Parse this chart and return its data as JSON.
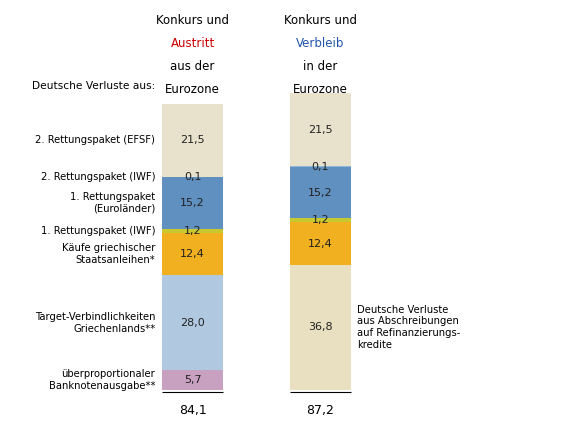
{
  "bar1_total": "84,1",
  "bar2_total": "87,2",
  "segments": [
    {
      "label": "2. Rettungspaket (EFSF)",
      "val1": 21.5,
      "val2": 21.5,
      "color1": "#e8e2cc",
      "color2": "#e8e2cc"
    },
    {
      "label": "2. Rettungspaket (IWF)",
      "val1": 0.1,
      "val2": 0.1,
      "color1": "#90b8d8",
      "color2": "#90b8d8"
    },
    {
      "label": "1. Rettungspaket\n(Euroländer)",
      "val1": 15.2,
      "val2": 15.2,
      "color1": "#6090c0",
      "color2": "#6090c0"
    },
    {
      "label": "1. Rettungspaket (IWF)",
      "val1": 1.2,
      "val2": 1.2,
      "color1": "#c8c830",
      "color2": "#c8c830"
    },
    {
      "label": "Käufe griechischer\nStaatsanleihen*",
      "val1": 12.4,
      "val2": 12.4,
      "color1": "#f0b020",
      "color2": "#f0b020"
    },
    {
      "label": "Target-Verbindlichkeiten\nGriechenlands**",
      "val1": 28.0,
      "val2": 36.8,
      "color1": "#b0c8e0",
      "color2": "#e8e0c0"
    },
    {
      "label": "überproportionaler\nBanknotenausgabe**",
      "val1": 5.7,
      "val2": 0.0,
      "color1": "#c8a0c0",
      "color2": null
    }
  ],
  "side_label": "Deutsche Verluste aus:",
  "right_annotation": "Deutsche Verluste\naus Abschreibungen\nauf Refinanzierungs-\nkredite",
  "label_fontsize": 7.2,
  "value_fontsize": 8.0,
  "header_fontsize": 8.5,
  "figsize": [
    5.66,
    4.22
  ],
  "dpi": 100
}
